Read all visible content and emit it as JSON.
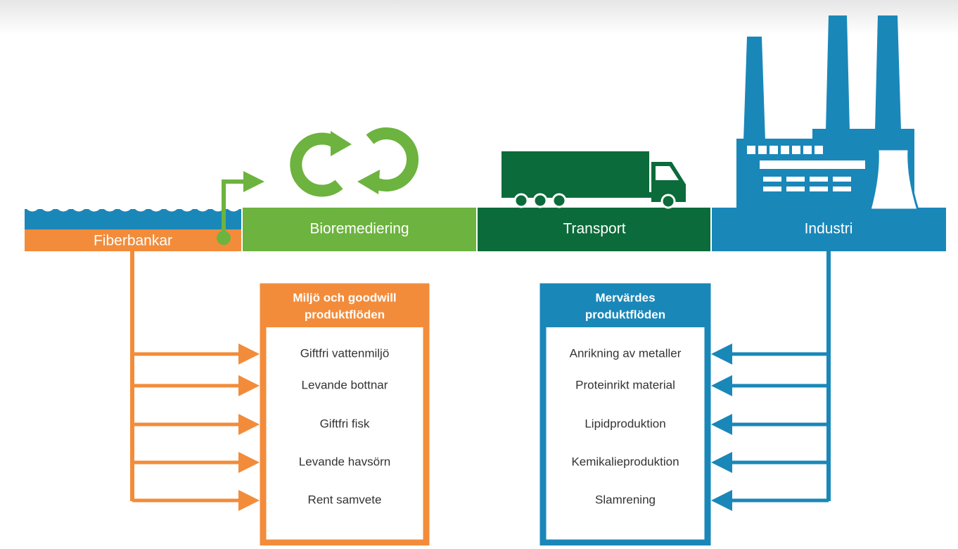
{
  "stages": [
    "Fiberbankar",
    "Bioremediering",
    "Transport",
    "Industri"
  ],
  "left_box": {
    "title": [
      "Miljö och goodwill",
      "produktflöden"
    ],
    "items": [
      "Giftfri vattenmiljö",
      "Levande bottnar",
      "Giftfri fisk",
      "Levande havsörn",
      "Rent samvete"
    ]
  },
  "right_box": {
    "title": [
      "Mervärdes",
      "produktflöden"
    ],
    "items": [
      "Anrikning av metaller",
      "Proteinrikt material",
      "Lipidproduktion",
      "Kemikalieproduktion",
      "Slamrening"
    ]
  }
}
